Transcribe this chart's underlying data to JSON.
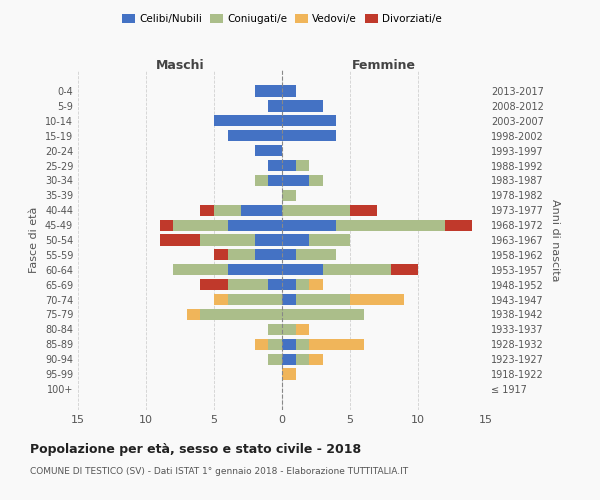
{
  "age_groups": [
    "100+",
    "95-99",
    "90-94",
    "85-89",
    "80-84",
    "75-79",
    "70-74",
    "65-69",
    "60-64",
    "55-59",
    "50-54",
    "45-49",
    "40-44",
    "35-39",
    "30-34",
    "25-29",
    "20-24",
    "15-19",
    "10-14",
    "5-9",
    "0-4"
  ],
  "birth_years": [
    "≤ 1917",
    "1918-1922",
    "1923-1927",
    "1928-1932",
    "1933-1937",
    "1938-1942",
    "1943-1947",
    "1948-1952",
    "1953-1957",
    "1958-1962",
    "1963-1967",
    "1968-1972",
    "1973-1977",
    "1978-1982",
    "1983-1987",
    "1988-1992",
    "1993-1997",
    "1998-2002",
    "2003-2007",
    "2008-2012",
    "2013-2017"
  ],
  "male_celibi": [
    0,
    0,
    0,
    0,
    0,
    0,
    0,
    1,
    4,
    2,
    2,
    4,
    3,
    0,
    1,
    1,
    2,
    4,
    5,
    1,
    2
  ],
  "male_coniugati": [
    0,
    0,
    1,
    1,
    1,
    6,
    4,
    3,
    4,
    2,
    4,
    4,
    2,
    0,
    1,
    0,
    0,
    0,
    0,
    0,
    0
  ],
  "male_vedovi": [
    0,
    0,
    0,
    1,
    0,
    1,
    1,
    0,
    0,
    0,
    0,
    0,
    0,
    0,
    0,
    0,
    0,
    0,
    0,
    0,
    0
  ],
  "male_divorziati": [
    0,
    0,
    0,
    0,
    0,
    0,
    0,
    2,
    0,
    1,
    3,
    1,
    1,
    0,
    0,
    0,
    0,
    0,
    0,
    0,
    0
  ],
  "female_celibi": [
    0,
    0,
    1,
    1,
    0,
    0,
    1,
    1,
    3,
    1,
    2,
    4,
    0,
    0,
    2,
    1,
    0,
    4,
    4,
    3,
    1
  ],
  "female_coniugati": [
    0,
    0,
    1,
    1,
    1,
    6,
    4,
    1,
    5,
    3,
    3,
    8,
    5,
    1,
    1,
    1,
    0,
    0,
    0,
    0,
    0
  ],
  "female_vedovi": [
    0,
    1,
    1,
    4,
    1,
    0,
    4,
    1,
    0,
    0,
    0,
    0,
    0,
    0,
    0,
    0,
    0,
    0,
    0,
    0,
    0
  ],
  "female_divorziati": [
    0,
    0,
    0,
    0,
    0,
    0,
    0,
    0,
    2,
    0,
    0,
    2,
    2,
    0,
    0,
    0,
    0,
    0,
    0,
    0,
    0
  ],
  "colors": {
    "celibi": "#4472C4",
    "coniugati": "#ABBE8A",
    "vedovi": "#F0B55A",
    "divorziati": "#C0392B"
  },
  "xlim": 15,
  "title": "Popolazione per età, sesso e stato civile - 2018",
  "subtitle": "COMUNE DI TESTICO (SV) - Dati ISTAT 1° gennaio 2018 - Elaborazione TUTTITALIA.IT",
  "left_label": "Maschi",
  "right_label": "Femmine",
  "ylabel": "Fasce di età",
  "right_ylabel": "Anni di nascita",
  "bg_color": "#f9f9f9",
  "grid_color": "#cccccc"
}
